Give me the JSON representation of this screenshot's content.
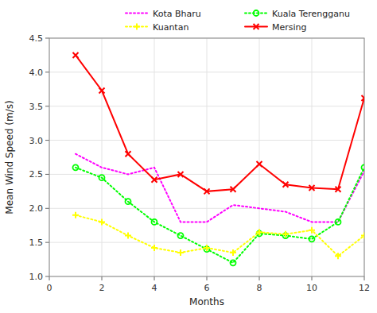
{
  "chart_data": {
    "type": "line",
    "xlabel": "Months",
    "ylabel": "Mean Wind Speed (m/s)",
    "x": [
      1,
      2,
      3,
      4,
      5,
      6,
      7,
      8,
      9,
      10,
      11,
      12
    ],
    "series": [
      {
        "name": "Kota Bharu",
        "color": "#FF00FF",
        "line_style": "dotted",
        "values": [
          2.8,
          2.6,
          2.5,
          2.6,
          1.8,
          1.8,
          2.05,
          2.0,
          1.95,
          1.8,
          1.8,
          2.55
        ]
      },
      {
        "name": "Kuala Terengganu",
        "color": "#00FF00",
        "line_style": "dotted",
        "marker": "circle",
        "values": [
          2.6,
          2.45,
          2.1,
          1.8,
          1.6,
          1.4,
          1.2,
          1.63,
          1.6,
          1.55,
          1.8,
          2.6
        ]
      },
      {
        "name": "Kuantan",
        "color": "#FFFF00",
        "line_style": "dotted",
        "marker": "plus",
        "values": [
          1.9,
          1.8,
          1.6,
          1.42,
          1.35,
          1.42,
          1.35,
          1.65,
          1.62,
          1.68,
          1.3,
          1.6
        ]
      },
      {
        "name": "Mersing",
        "color": "#FF0000",
        "line_style": "solid",
        "marker": "x",
        "values": [
          4.25,
          3.73,
          2.8,
          2.42,
          2.5,
          2.25,
          2.28,
          2.65,
          2.35,
          2.3,
          2.28,
          3.62
        ]
      }
    ],
    "xlim": [
      0,
      12
    ],
    "ylim": [
      1.0,
      4.5
    ],
    "xticks": [
      0,
      2,
      4,
      6,
      8,
      10,
      12
    ],
    "yticks": [
      {
        "value": 1,
        "label": "1.0"
      },
      1.5,
      {
        "value": 2,
        "label": "2.0"
      },
      2.5,
      {
        "value": 3,
        "label": "3.0"
      },
      3.5,
      {
        "value": 4,
        "label": "4.0"
      },
      4.5
    ],
    "grid": true,
    "legend": "upper right"
  }
}
